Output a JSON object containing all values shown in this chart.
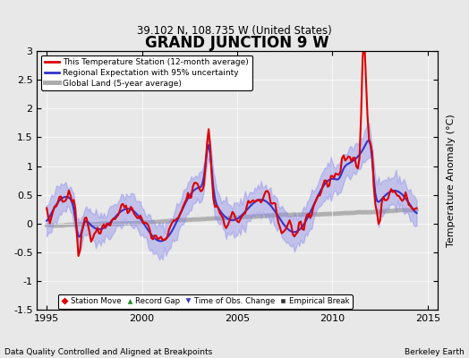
{
  "title": "GRAND JUNCTION 9 W",
  "subtitle": "39.102 N, 108.735 W (United States)",
  "xlabel_left": "Data Quality Controlled and Aligned at Breakpoints",
  "xlabel_right": "Berkeley Earth",
  "ylabel": "Temperature Anomaly (°C)",
  "xlim": [
    1994.5,
    2015.5
  ],
  "ylim": [
    -1.5,
    3.0
  ],
  "yticks": [
    -1.5,
    -1.0,
    -0.5,
    0.0,
    0.5,
    1.0,
    1.5,
    2.0,
    2.5,
    3.0
  ],
  "xticks": [
    1995,
    2000,
    2005,
    2010,
    2015
  ],
  "background_color": "#e8e8e8",
  "plot_bg_color": "#e8e8e8",
  "legend_items": [
    {
      "label": "This Temperature Station (12-month average)",
      "color": "#dd0000",
      "lw": 1.5
    },
    {
      "label": "Regional Expectation with 95% uncertainty",
      "color": "#3333cc",
      "lw": 1.5
    },
    {
      "label": "Global Land (5-year average)",
      "color": "#aaaaaa",
      "lw": 3.0
    }
  ],
  "marker_legend": [
    {
      "marker": "D",
      "color": "#dd0000",
      "label": "Station Move"
    },
    {
      "marker": "^",
      "color": "#228B22",
      "label": "Record Gap"
    },
    {
      "marker": "v",
      "color": "#3333cc",
      "label": "Time of Obs. Change"
    },
    {
      "marker": "s",
      "color": "#333333",
      "label": "Empirical Break"
    }
  ]
}
